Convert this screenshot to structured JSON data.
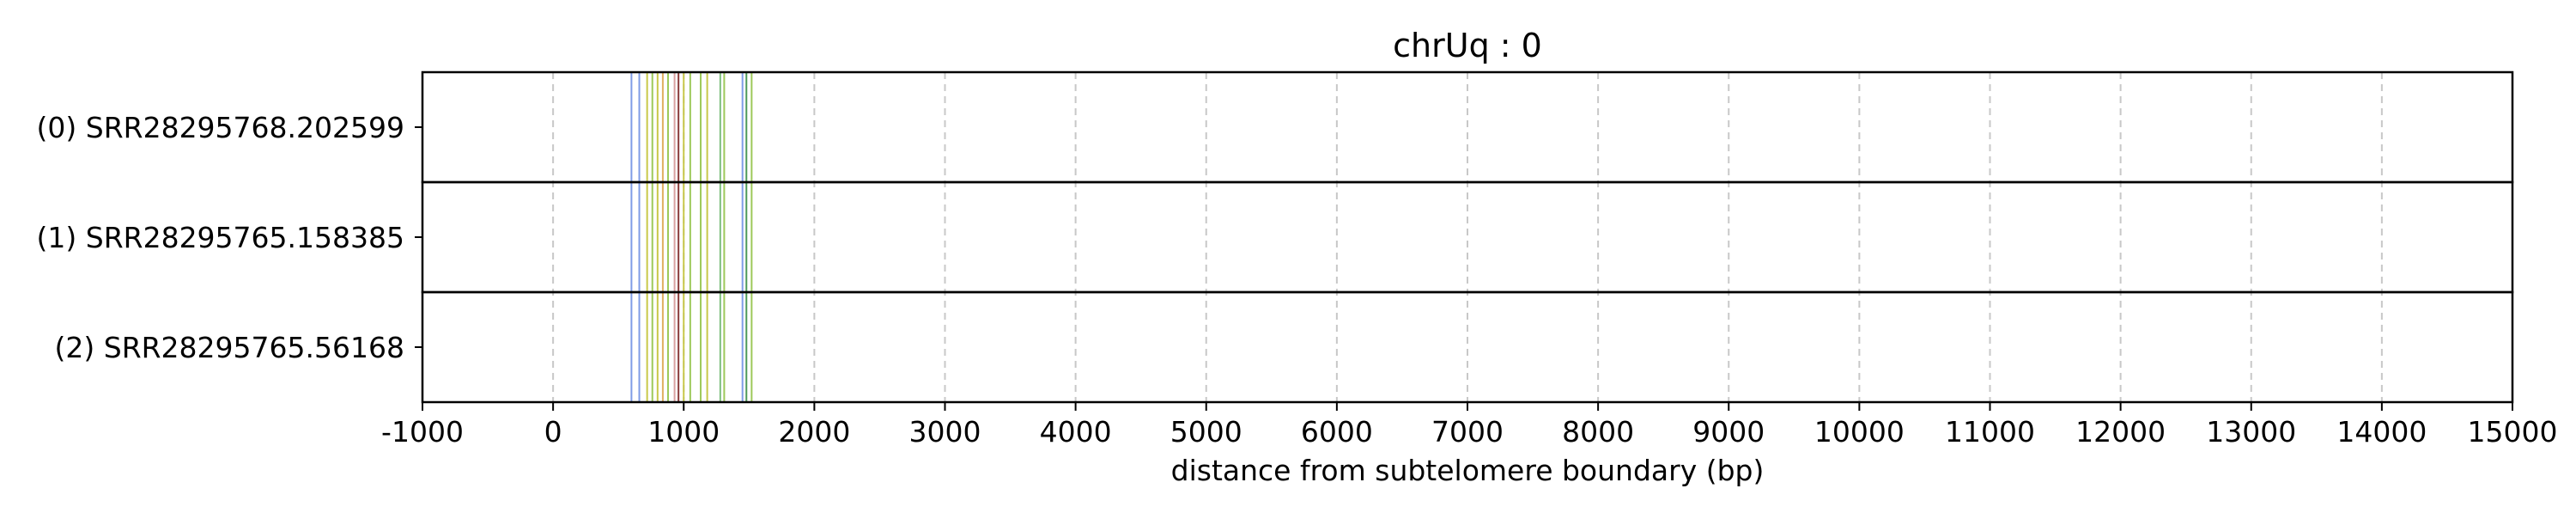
{
  "chart_data": {
    "type": "line",
    "title": "chrUq : 0",
    "xlabel": "distance from subtelomere boundary (bp)",
    "ylabel": "",
    "xlim": [
      -1000,
      15000
    ],
    "x_ticks": [
      -1000,
      0,
      1000,
      2000,
      3000,
      4000,
      5000,
      6000,
      7000,
      8000,
      9000,
      10000,
      11000,
      12000,
      13000,
      14000,
      15000
    ],
    "x_tick_labels": [
      "-1000",
      "0",
      "1000",
      "2000",
      "3000",
      "4000",
      "5000",
      "6000",
      "7000",
      "8000",
      "9000",
      "10000",
      "11000",
      "12000",
      "13000",
      "14000",
      "15000"
    ],
    "grid": "vertical dashed",
    "rows": [
      {
        "label": "(0) SRR28295768.202599"
      },
      {
        "label": "(1) SRR28295765.158385"
      },
      {
        "label": "(2) SRR28295765.56168"
      }
    ],
    "marks": [
      {
        "x": 600,
        "color": "#7f9ce6"
      },
      {
        "x": 660,
        "color": "#7f9ce6"
      },
      {
        "x": 720,
        "color": "#c8c84a"
      },
      {
        "x": 760,
        "color": "#9dc95a"
      },
      {
        "x": 800,
        "color": "#c8c84a"
      },
      {
        "x": 840,
        "color": "#e0b060"
      },
      {
        "x": 880,
        "color": "#9dc95a"
      },
      {
        "x": 930,
        "color": "#d9a0a0"
      },
      {
        "x": 960,
        "color": "#8b3a3a"
      },
      {
        "x": 1000,
        "color": "#c8c84a"
      },
      {
        "x": 1050,
        "color": "#9dc95a"
      },
      {
        "x": 1130,
        "color": "#9dc95a"
      },
      {
        "x": 1180,
        "color": "#c8c84a"
      },
      {
        "x": 1280,
        "color": "#7fbf7f"
      },
      {
        "x": 1310,
        "color": "#9dc95a"
      },
      {
        "x": 1450,
        "color": "#7f9ce6"
      },
      {
        "x": 1480,
        "color": "#4e9a5a"
      },
      {
        "x": 1520,
        "color": "#9dc95a"
      }
    ]
  }
}
